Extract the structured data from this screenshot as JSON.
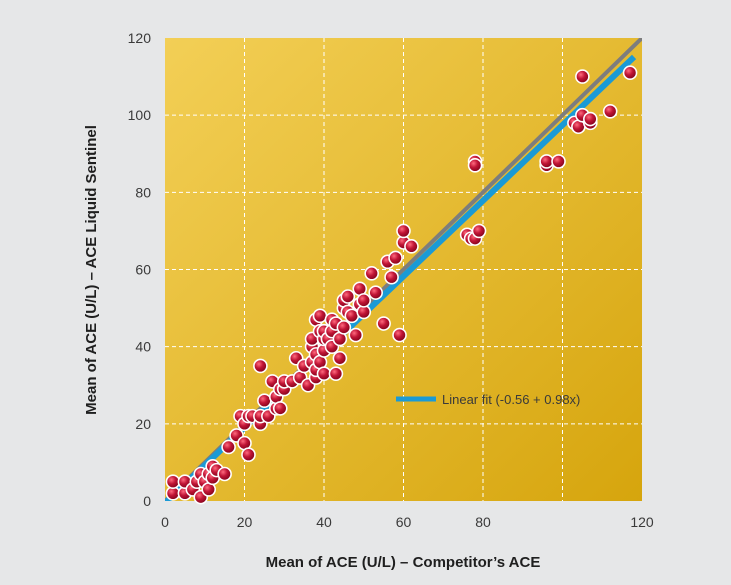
{
  "chart_data": {
    "type": "scatter",
    "title": "",
    "xlabel": "Mean of ACE (U/L) – Competitor’s ACE",
    "ylabel": "Mean of ACE (U/L) – ACE Liquid Sentinel",
    "xlim": [
      0,
      120
    ],
    "ylim": [
      0,
      120
    ],
    "xticks": [
      "0",
      "20",
      "40",
      "60",
      "80",
      "120"
    ],
    "xtick_values": [
      0,
      20,
      40,
      60,
      80,
      120
    ],
    "yticks": [
      "0",
      "20",
      "40",
      "60",
      "80",
      "100",
      "120"
    ],
    "ytick_values": [
      0,
      20,
      40,
      60,
      80,
      100,
      120
    ],
    "grid": true,
    "legend_position": "right",
    "lines": [
      {
        "name": "Linear fit (-0.56 + 0.98x)",
        "intercept": -0.56,
        "slope": 0.98,
        "color": "#1a9ad6"
      },
      {
        "intercept": 0,
        "slope": 1,
        "color": "#7d7d7d"
      }
    ],
    "points": [
      [
        2,
        2
      ],
      [
        2,
        5
      ],
      [
        5,
        2
      ],
      [
        5,
        5
      ],
      [
        7,
        3
      ],
      [
        8,
        5
      ],
      [
        9,
        1
      ],
      [
        9,
        7
      ],
      [
        10,
        5
      ],
      [
        11,
        3
      ],
      [
        11,
        7
      ],
      [
        12,
        6
      ],
      [
        12,
        9
      ],
      [
        13,
        8
      ],
      [
        15,
        7
      ],
      [
        16,
        14
      ],
      [
        18,
        17
      ],
      [
        19,
        22
      ],
      [
        20,
        20
      ],
      [
        20,
        15
      ],
      [
        21,
        12
      ],
      [
        21,
        22
      ],
      [
        22,
        22
      ],
      [
        24,
        20
      ],
      [
        24,
        22
      ],
      [
        24,
        35
      ],
      [
        25,
        26
      ],
      [
        26,
        22
      ],
      [
        27,
        31
      ],
      [
        28,
        24
      ],
      [
        28,
        27
      ],
      [
        29,
        29
      ],
      [
        29,
        24
      ],
      [
        30,
        29
      ],
      [
        30,
        31
      ],
      [
        32,
        31
      ],
      [
        33,
        37
      ],
      [
        34,
        32
      ],
      [
        35,
        35
      ],
      [
        36,
        30
      ],
      [
        37,
        36
      ],
      [
        37,
        40
      ],
      [
        37,
        42
      ],
      [
        38,
        38
      ],
      [
        38,
        32
      ],
      [
        38,
        34
      ],
      [
        38,
        47
      ],
      [
        39,
        44
      ],
      [
        39,
        48
      ],
      [
        39,
        36
      ],
      [
        40,
        33
      ],
      [
        40,
        39
      ],
      [
        40,
        42
      ],
      [
        40,
        44
      ],
      [
        41,
        42
      ],
      [
        42,
        47
      ],
      [
        42,
        40
      ],
      [
        42,
        44
      ],
      [
        43,
        33
      ],
      [
        43,
        46
      ],
      [
        44,
        37
      ],
      [
        44,
        42
      ],
      [
        45,
        45
      ],
      [
        45,
        50
      ],
      [
        45,
        52
      ],
      [
        46,
        49
      ],
      [
        46,
        53
      ],
      [
        47,
        48
      ],
      [
        48,
        43
      ],
      [
        49,
        51
      ],
      [
        49,
        55
      ],
      [
        50,
        49
      ],
      [
        50,
        52
      ],
      [
        52,
        59
      ],
      [
        53,
        54
      ],
      [
        55,
        46
      ],
      [
        56,
        62
      ],
      [
        57,
        58
      ],
      [
        58,
        63
      ],
      [
        59,
        43
      ],
      [
        60,
        67
      ],
      [
        60,
        70
      ],
      [
        62,
        66
      ],
      [
        76,
        69
      ],
      [
        77,
        68
      ],
      [
        78,
        68
      ],
      [
        78,
        88
      ],
      [
        78,
        87
      ],
      [
        79,
        70
      ],
      [
        96,
        87
      ],
      [
        96,
        88
      ],
      [
        99,
        88
      ],
      [
        103,
        98
      ],
      [
        104,
        97
      ],
      [
        105,
        100
      ],
      [
        105,
        110
      ],
      [
        107,
        98
      ],
      [
        107,
        99
      ],
      [
        112,
        101
      ],
      [
        117,
        111
      ]
    ],
    "point_color": "#c01536",
    "background_colors": [
      "#f3cf56",
      "#d6a50d"
    ]
  }
}
